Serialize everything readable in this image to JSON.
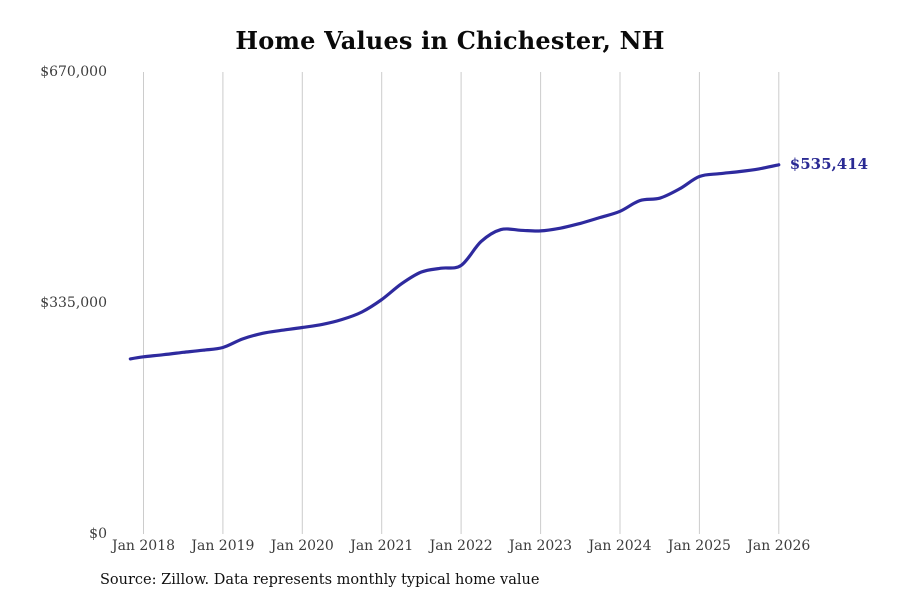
{
  "page": {
    "source_note": "Source: Zillow. Data represents monthly typical home value"
  },
  "chart_data": {
    "type": "line",
    "title": "Home Values in Chichester, NH",
    "xlabel": "",
    "ylabel": "",
    "ylim": [
      0,
      670000
    ],
    "grid": "vertical-only",
    "legend": "none",
    "line_color": "#2e2a9e",
    "grid_color": "#cccccc",
    "tick_color": "#3c3c3c",
    "end_label": "$535,414",
    "end_value": 535414,
    "x_axis": [
      "Jan 2018",
      "Jan 2019",
      "Jan 2020",
      "Jan 2021",
      "Jan 2022",
      "Jan 2023",
      "Jan 2024",
      "Jan 2025",
      "Jan 2026"
    ],
    "y_axis": [
      {
        "label": "$670,000",
        "value": 670000
      },
      {
        "label": "$335,000",
        "value": 335000
      },
      {
        "label": "$0",
        "value": 0
      }
    ],
    "series": [
      {
        "name": "Monthly typical home value",
        "points": [
          {
            "m": -2,
            "label": "Nov 2017",
            "value": 254000
          },
          {
            "m": 0,
            "label": "Jan 2018",
            "value": 257000
          },
          {
            "m": 3,
            "label": "Apr 2018",
            "value": 260000
          },
          {
            "m": 6,
            "label": "Jul 2018",
            "value": 263500
          },
          {
            "m": 9,
            "label": "Oct 2018",
            "value": 266500
          },
          {
            "m": 12,
            "label": "Jan 2019",
            "value": 270500
          },
          {
            "m": 15,
            "label": "Apr 2019",
            "value": 283000
          },
          {
            "m": 18,
            "label": "Jul 2019",
            "value": 291000
          },
          {
            "m": 21,
            "label": "Oct 2019",
            "value": 295500
          },
          {
            "m": 24,
            "label": "Jan 2020",
            "value": 299500
          },
          {
            "m": 27,
            "label": "Apr 2020",
            "value": 304000
          },
          {
            "m": 30,
            "label": "Jul 2020",
            "value": 311000
          },
          {
            "m": 33,
            "label": "Oct 2020",
            "value": 322000
          },
          {
            "m": 36,
            "label": "Jan 2021",
            "value": 340000
          },
          {
            "m": 39,
            "label": "Apr 2021",
            "value": 363000
          },
          {
            "m": 42,
            "label": "Jul 2021",
            "value": 380000
          },
          {
            "m": 45,
            "label": "Oct 2021",
            "value": 385500
          },
          {
            "m": 48,
            "label": "Jan 2022",
            "value": 389500
          },
          {
            "m": 51,
            "label": "Apr 2022",
            "value": 424000
          },
          {
            "m": 54,
            "label": "Jul 2022",
            "value": 441500
          },
          {
            "m": 57,
            "label": "Oct 2022",
            "value": 440500
          },
          {
            "m": 60,
            "label": "Jan 2023",
            "value": 439500
          },
          {
            "m": 63,
            "label": "Apr 2023",
            "value": 443500
          },
          {
            "m": 66,
            "label": "Jul 2023",
            "value": 450500
          },
          {
            "m": 69,
            "label": "Oct 2023",
            "value": 459000
          },
          {
            "m": 72,
            "label": "Jan 2024",
            "value": 468000
          },
          {
            "m": 75,
            "label": "Apr 2024",
            "value": 483500
          },
          {
            "m": 78,
            "label": "Jul 2024",
            "value": 487000
          },
          {
            "m": 81,
            "label": "Oct 2024",
            "value": 500500
          },
          {
            "m": 84,
            "label": "Jan 2025",
            "value": 518500
          },
          {
            "m": 87,
            "label": "Apr 2025",
            "value": 522500
          },
          {
            "m": 90,
            "label": "Jul 2025",
            "value": 525500
          },
          {
            "m": 93,
            "label": "Oct 2025",
            "value": 529500
          },
          {
            "m": 96,
            "label": "Jan 2026",
            "value": 535414
          }
        ]
      }
    ]
  }
}
